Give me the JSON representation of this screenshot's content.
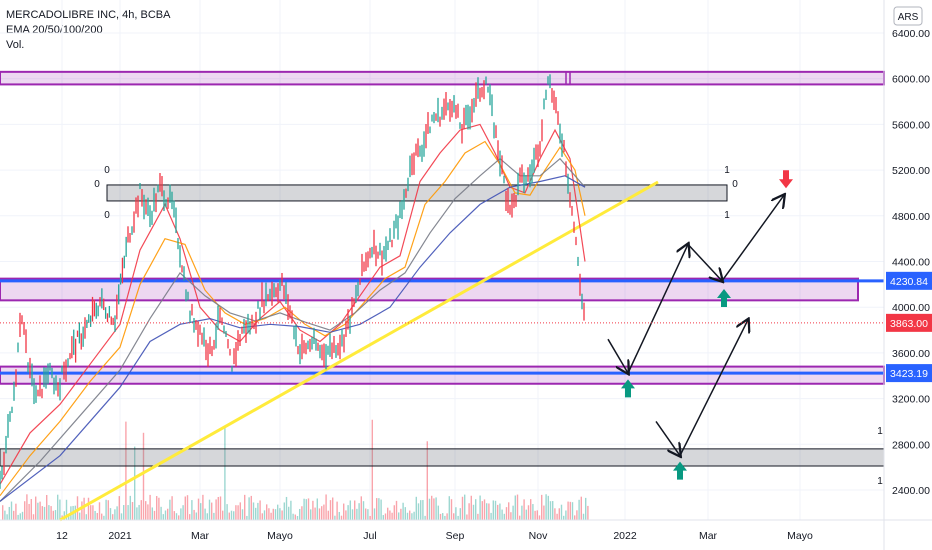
{
  "legend": {
    "symbol": "MERCADOLIBRE INC, 4h, BCBA",
    "indicator": "EMA 20/50/100/200",
    "volume": "Vol."
  },
  "currency": "ARS",
  "chart_data": {
    "type": "candlestick",
    "symbol": "MERCADOLIBRE INC",
    "interval": "4h",
    "exchange": "BCBA",
    "ylim": [
      2250,
      6500
    ],
    "y_ticks": [
      2400,
      2800,
      3200,
      3600,
      4000,
      4400,
      4800,
      5200,
      5600,
      6000,
      6400
    ],
    "x_ticks": [
      "12",
      "2021",
      "Mar",
      "Mayo",
      "Jul",
      "Sep",
      "Nov",
      "2022",
      "Mar",
      "Mayo"
    ],
    "y_tick_labels": [
      "2400.00",
      "2800.00",
      "3200.00",
      "3600.00",
      "4000.00",
      "4400.00",
      "4800.00",
      "5200.00",
      "5600.00",
      "6000.00",
      "6400.00"
    ],
    "price_labels": [
      {
        "value": 4230.84,
        "text": "4230.84",
        "color": "#2962ff"
      },
      {
        "value": 3863.0,
        "text": "3863.00",
        "color": "#f23645"
      },
      {
        "value": 3423.19,
        "text": "3423.19",
        "color": "#2962ff"
      }
    ],
    "zones": [
      {
        "name": "resistance-zone-top",
        "from": 5950,
        "to": 6060,
        "color": "#9c27b0"
      },
      {
        "name": "mid-zone",
        "from": 4060,
        "to": 4250,
        "color": "#9c27b0"
      },
      {
        "name": "support-zone",
        "from": 3330,
        "to": 3480,
        "color": "#9c27b0"
      },
      {
        "name": "fib-zone-upper",
        "from": 4930,
        "to": 5070,
        "color": "#787b86"
      },
      {
        "name": "fib-zone-lower",
        "from": 2610,
        "to": 2760,
        "color": "#787b86"
      }
    ],
    "fib_labels": [
      {
        "text": "0",
        "pos": "upper-left-top"
      },
      {
        "text": "0",
        "pos": "upper-left-mid"
      },
      {
        "text": "0",
        "pos": "upper-left-bottom"
      },
      {
        "text": "1",
        "pos": "upper-right-top"
      },
      {
        "text": "0",
        "pos": "upper-right-mid"
      },
      {
        "text": "1",
        "pos": "upper-right-bottom"
      },
      {
        "text": "1",
        "pos": "lower-right-top"
      },
      {
        "text": "1",
        "pos": "lower-right-bottom"
      }
    ],
    "series": [
      {
        "name": "EMA 20",
        "color": "#f23645",
        "points": [
          [
            0,
            2450
          ],
          [
            30,
            2900
          ],
          [
            60,
            3150
          ],
          [
            90,
            3500
          ],
          [
            120,
            3850
          ],
          [
            140,
            4500
          ],
          [
            165,
            4900
          ],
          [
            180,
            4600
          ],
          [
            200,
            4000
          ],
          [
            220,
            3800
          ],
          [
            240,
            3700
          ],
          [
            260,
            3900
          ],
          [
            280,
            4050
          ],
          [
            300,
            3800
          ],
          [
            320,
            3700
          ],
          [
            340,
            3850
          ],
          [
            360,
            4100
          ],
          [
            380,
            4350
          ],
          [
            400,
            4450
          ],
          [
            420,
            5100
          ],
          [
            440,
            5350
          ],
          [
            460,
            5550
          ],
          [
            480,
            5600
          ],
          [
            495,
            5350
          ],
          [
            510,
            5050
          ],
          [
            525,
            5000
          ],
          [
            540,
            5300
          ],
          [
            555,
            5550
          ],
          [
            570,
            5300
          ],
          [
            585,
            4400
          ]
        ]
      },
      {
        "name": "EMA 50",
        "color": "#ff9800",
        "points": [
          [
            0,
            2350
          ],
          [
            30,
            2700
          ],
          [
            60,
            3000
          ],
          [
            90,
            3350
          ],
          [
            120,
            3650
          ],
          [
            140,
            4200
          ],
          [
            165,
            4600
          ],
          [
            185,
            4550
          ],
          [
            205,
            4150
          ],
          [
            225,
            3950
          ],
          [
            245,
            3850
          ],
          [
            265,
            3900
          ],
          [
            285,
            4000
          ],
          [
            305,
            3850
          ],
          [
            325,
            3750
          ],
          [
            345,
            3850
          ],
          [
            365,
            4050
          ],
          [
            385,
            4250
          ],
          [
            405,
            4350
          ],
          [
            425,
            4900
          ],
          [
            445,
            5100
          ],
          [
            465,
            5350
          ],
          [
            485,
            5450
          ],
          [
            500,
            5250
          ],
          [
            515,
            5000
          ],
          [
            530,
            4980
          ],
          [
            545,
            5200
          ],
          [
            560,
            5400
          ],
          [
            575,
            5200
          ],
          [
            585,
            4800
          ]
        ]
      },
      {
        "name": "EMA 100",
        "color": "#787b86",
        "points": [
          [
            0,
            2300
          ],
          [
            40,
            2650
          ],
          [
            80,
            3050
          ],
          [
            120,
            3450
          ],
          [
            150,
            3900
          ],
          [
            180,
            4300
          ],
          [
            205,
            4100
          ],
          [
            230,
            3950
          ],
          [
            255,
            3880
          ],
          [
            280,
            3950
          ],
          [
            305,
            3870
          ],
          [
            330,
            3800
          ],
          [
            355,
            3950
          ],
          [
            380,
            4150
          ],
          [
            405,
            4300
          ],
          [
            430,
            4650
          ],
          [
            455,
            4950
          ],
          [
            480,
            5150
          ],
          [
            500,
            5300
          ],
          [
            520,
            5150
          ],
          [
            540,
            5150
          ],
          [
            560,
            5300
          ],
          [
            585,
            5050
          ]
        ]
      },
      {
        "name": "EMA 200",
        "color": "#3f51b5",
        "points": [
          [
            0,
            2300
          ],
          [
            60,
            2700
          ],
          [
            120,
            3300
          ],
          [
            150,
            3700
          ],
          [
            180,
            3850
          ],
          [
            210,
            3900
          ],
          [
            240,
            3820
          ],
          [
            270,
            3850
          ],
          [
            300,
            3830
          ],
          [
            330,
            3780
          ],
          [
            360,
            3850
          ],
          [
            390,
            4000
          ],
          [
            420,
            4350
          ],
          [
            450,
            4650
          ],
          [
            480,
            4900
          ],
          [
            510,
            5050
          ],
          [
            540,
            5100
          ],
          [
            565,
            5150
          ],
          [
            585,
            5050
          ]
        ]
      },
      {
        "name": "Price",
        "color": "#26a69a",
        "points": [
          [
            0,
            2500
          ],
          [
            12,
            3100
          ],
          [
            22,
            3950
          ],
          [
            30,
            3400
          ],
          [
            38,
            3200
          ],
          [
            48,
            3450
          ],
          [
            58,
            3300
          ],
          [
            70,
            3600
          ],
          [
            85,
            3800
          ],
          [
            100,
            4050
          ],
          [
            115,
            3900
          ],
          [
            128,
            4600
          ],
          [
            140,
            5000
          ],
          [
            150,
            4800
          ],
          [
            160,
            5050
          ],
          [
            172,
            4900
          ],
          [
            180,
            4500
          ],
          [
            190,
            3950
          ],
          [
            200,
            3800
          ],
          [
            210,
            3600
          ],
          [
            220,
            3900
          ],
          [
            232,
            3500
          ],
          [
            242,
            3800
          ],
          [
            252,
            3850
          ],
          [
            262,
            4050
          ],
          [
            272,
            4150
          ],
          [
            282,
            4200
          ],
          [
            292,
            3900
          ],
          [
            300,
            3600
          ],
          [
            312,
            3700
          ],
          [
            322,
            3600
          ],
          [
            332,
            3650
          ],
          [
            342,
            3700
          ],
          [
            352,
            3950
          ],
          [
            362,
            4300
          ],
          [
            372,
            4550
          ],
          [
            382,
            4450
          ],
          [
            392,
            4600
          ],
          [
            402,
            4850
          ],
          [
            412,
            5300
          ],
          [
            422,
            5400
          ],
          [
            432,
            5650
          ],
          [
            442,
            5700
          ],
          [
            452,
            5800
          ],
          [
            462,
            5550
          ],
          [
            472,
            5750
          ],
          [
            486,
            6000
          ],
          [
            496,
            5500
          ],
          [
            506,
            5000
          ],
          [
            512,
            4850
          ],
          [
            520,
            5100
          ],
          [
            530,
            5150
          ],
          [
            540,
            5450
          ],
          [
            548,
            6050
          ],
          [
            556,
            5700
          ],
          [
            564,
            5400
          ],
          [
            572,
            4850
          ],
          [
            578,
            4400
          ],
          [
            582,
            4050
          ],
          [
            586,
            3863
          ]
        ]
      }
    ],
    "annotations": [
      {
        "type": "trendline",
        "color": "#ffeb3b",
        "from": [
          "2020-12-15",
          2300
        ],
        "to": [
          "2022-01-20",
          5100
        ]
      },
      {
        "type": "path",
        "name": "projected-path-1",
        "points": [
          [
            608,
            3720
          ],
          [
            628,
            3423
          ],
          [
            688,
            4550
          ],
          [
            722,
            4230
          ],
          [
            784,
            4980
          ]
        ]
      },
      {
        "type": "path",
        "name": "projected-path-2",
        "points": [
          [
            656,
            3000
          ],
          [
            680,
            2700
          ],
          [
            748,
            3890
          ]
        ]
      },
      {
        "type": "arrow-up",
        "color": "#089981",
        "at": [
          628,
          3290
        ]
      },
      {
        "type": "arrow-up",
        "color": "#089981",
        "at": [
          724,
          4080
        ]
      },
      {
        "type": "arrow-up",
        "color": "#089981",
        "at": [
          680,
          2570
        ]
      },
      {
        "type": "arrow-down",
        "color": "#f23645",
        "at": [
          786,
          5120
        ]
      }
    ],
    "volume": {
      "color_up": "#26a69a",
      "color_down": "#f23645"
    }
  }
}
